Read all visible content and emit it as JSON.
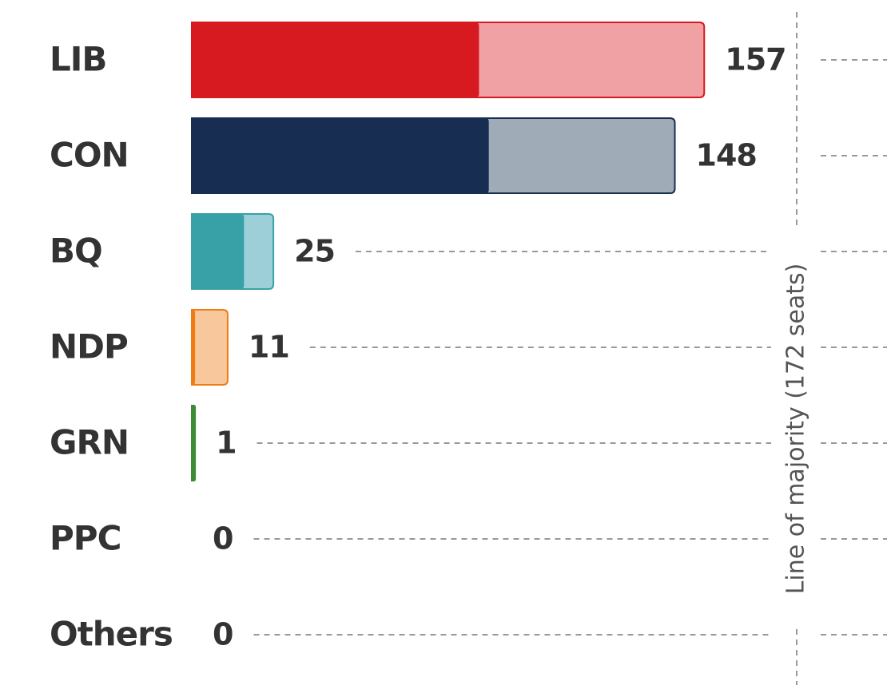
{
  "chart_data": {
    "type": "bar",
    "orientation": "horizontal",
    "categories": [
      "LIB",
      "CON",
      "BQ",
      "NDP",
      "GRN",
      "PPC",
      "Others"
    ],
    "values": [
      157,
      148,
      25,
      11,
      1,
      0,
      0
    ],
    "elected": [
      88,
      91,
      16,
      1,
      1,
      0,
      0
    ],
    "colors": [
      "#d71920",
      "#172e52",
      "#38a1a8",
      "#f07d13",
      "#3d8b37",
      "#6f4a9c",
      "#888888"
    ],
    "light_colors": [
      "#f0a1a4",
      "#a0abb8",
      "#9dcfd8",
      "#f8c89c",
      "#a9d3a4",
      "#c7b6dc",
      "#cccccc"
    ],
    "xlim": [
      0,
      213
    ],
    "annotation": "Line of majority (172 seats)"
  }
}
